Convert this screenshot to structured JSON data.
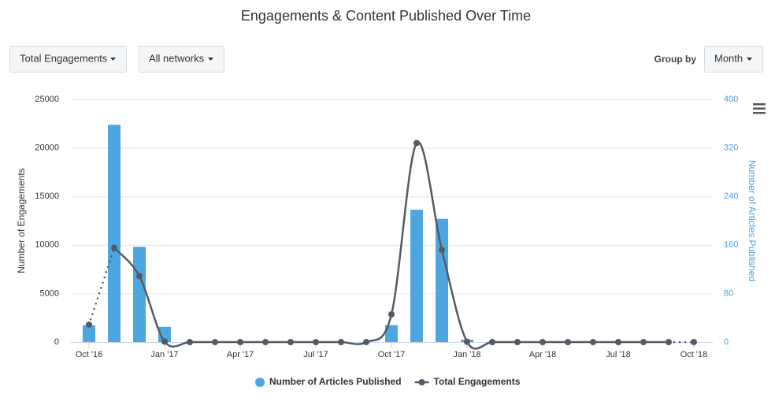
{
  "ui": {
    "metric_dropdown": "Total Engagements",
    "network_dropdown": "All networks",
    "group_by_label": "Group by",
    "group_by_dropdown": "Month"
  },
  "chart_data": {
    "type": "combo",
    "title": "Engagements & Content Published Over Time",
    "categories": [
      "Oct '16",
      null,
      null,
      "Jan '17",
      null,
      null,
      "Apr '17",
      null,
      null,
      "Jul '17",
      null,
      null,
      "Oct '17",
      null,
      null,
      "Jan '18",
      null,
      null,
      "Apr '18",
      null,
      null,
      "Jul '18",
      null,
      null,
      "Oct '18"
    ],
    "y_label": "Number of Engagements",
    "y2_label": "Number of Articles Published",
    "ylim": [
      0,
      25000
    ],
    "yticks": [
      0,
      5000,
      10000,
      15000,
      20000,
      25000
    ],
    "y2lim": [
      0,
      400
    ],
    "y2ticks": [
      0,
      80,
      160,
      240,
      320,
      400
    ],
    "grid": true,
    "legend": "bottom",
    "dotted_ends": true,
    "series": [
      {
        "name": "Number of Articles Published",
        "type": "bar",
        "axis": "y2",
        "color": "#4ea6e0",
        "values": [
          28,
          358,
          157,
          25,
          0,
          0,
          0,
          0,
          0,
          0,
          0,
          0,
          28,
          218,
          203,
          4,
          0,
          0,
          0,
          0,
          0,
          0,
          0,
          0,
          0
        ]
      },
      {
        "name": "Total Engagements",
        "type": "line",
        "color": "#535a64",
        "values": [
          1800,
          9700,
          6800,
          50,
          0,
          0,
          0,
          0,
          0,
          0,
          0,
          0,
          2850,
          20500,
          9500,
          30,
          0,
          0,
          0,
          0,
          0,
          0,
          0,
          0,
          0
        ]
      }
    ]
  }
}
